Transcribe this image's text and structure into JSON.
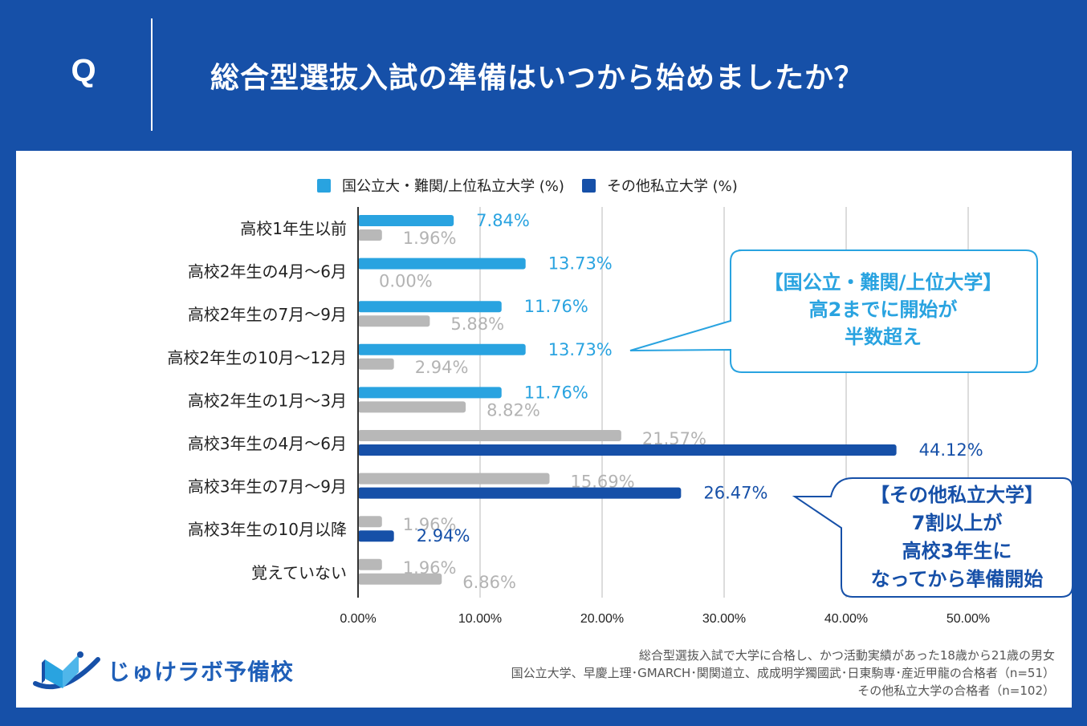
{
  "header": {
    "q_mark": "Q",
    "title": "総合型選抜入試の準備はいつから始めましたか？"
  },
  "colors": {
    "header_bg": "#1650a8",
    "series_a": "#29a3e0",
    "series_b": "#1650a8",
    "secondary_bar": "#b8b8b8",
    "secondary_label": "#b3b3b3"
  },
  "chart_data": {
    "type": "bar",
    "orientation": "horizontal",
    "title": "総合型選抜入試の準備はいつから始めましたか？",
    "xlabel": "",
    "ylabel": "",
    "xlim": [
      0,
      55
    ],
    "x_ticks": [
      0,
      10,
      20,
      30,
      40,
      50
    ],
    "x_tick_labels": [
      "0.00%",
      "10.00%",
      "20.00%",
      "30.00%",
      "40.00%",
      "50.00%"
    ],
    "grid": true,
    "legend_position": "top",
    "categories": [
      "高校1年生以前",
      "高校2年生の4月〜6月",
      "高校2年生の7月〜9月",
      "高校2年生の10月〜12月",
      "高校2年生の1月〜3月",
      "高校3年生の4月〜6月",
      "高校3年生の7月〜9月",
      "高校3年生の10月以降",
      "覚えていない"
    ],
    "series": [
      {
        "name": "国公立大・難関/上位私立大学 (%)",
        "values": [
          7.84,
          13.73,
          11.76,
          13.73,
          11.76,
          21.57,
          15.69,
          1.96,
          1.96
        ],
        "labels": [
          "7.84%",
          "13.73%",
          "11.76%",
          "13.73%",
          "11.76%",
          "21.57%",
          "15.69%",
          "1.96%",
          "1.96%"
        ],
        "highlighted": [
          true,
          true,
          true,
          true,
          true,
          false,
          false,
          false,
          false
        ]
      },
      {
        "name": "その他私立大学 (%)",
        "values": [
          1.96,
          0.0,
          5.88,
          2.94,
          8.82,
          44.12,
          26.47,
          2.94,
          6.86
        ],
        "labels": [
          "1.96%",
          "0.00%",
          "5.88%",
          "2.94%",
          "8.82%",
          "44.12%",
          "26.47%",
          "2.94%",
          "6.86%"
        ],
        "highlighted": [
          false,
          false,
          false,
          false,
          false,
          true,
          true,
          true,
          false
        ]
      }
    ],
    "annotations": [
      {
        "series": 0,
        "lines": [
          "【国公立・難関/上位大学】",
          "高2までに開始が",
          "半数超え"
        ]
      },
      {
        "series": 1,
        "lines": [
          "【その他私立大学】",
          "7割以上が",
          "高校3年生に",
          "なってから準備開始"
        ]
      }
    ]
  },
  "legend": [
    {
      "label": "国公立大・難関/上位私立大学 (%)"
    },
    {
      "label": "その他私立大学 (%)"
    }
  ],
  "footer": {
    "logo_text": "じゅけラボ予備校",
    "notes": [
      "総合型選抜入試で大学に合格し、かつ活動実績があった18歳から21歳の男女",
      "国公立大学、早慶上理･GMARCH･関関道立、成成明学獨國武･日東駒専･産近甲龍の合格者（n=51）",
      "その他私立大学の合格者（n=102）"
    ]
  }
}
